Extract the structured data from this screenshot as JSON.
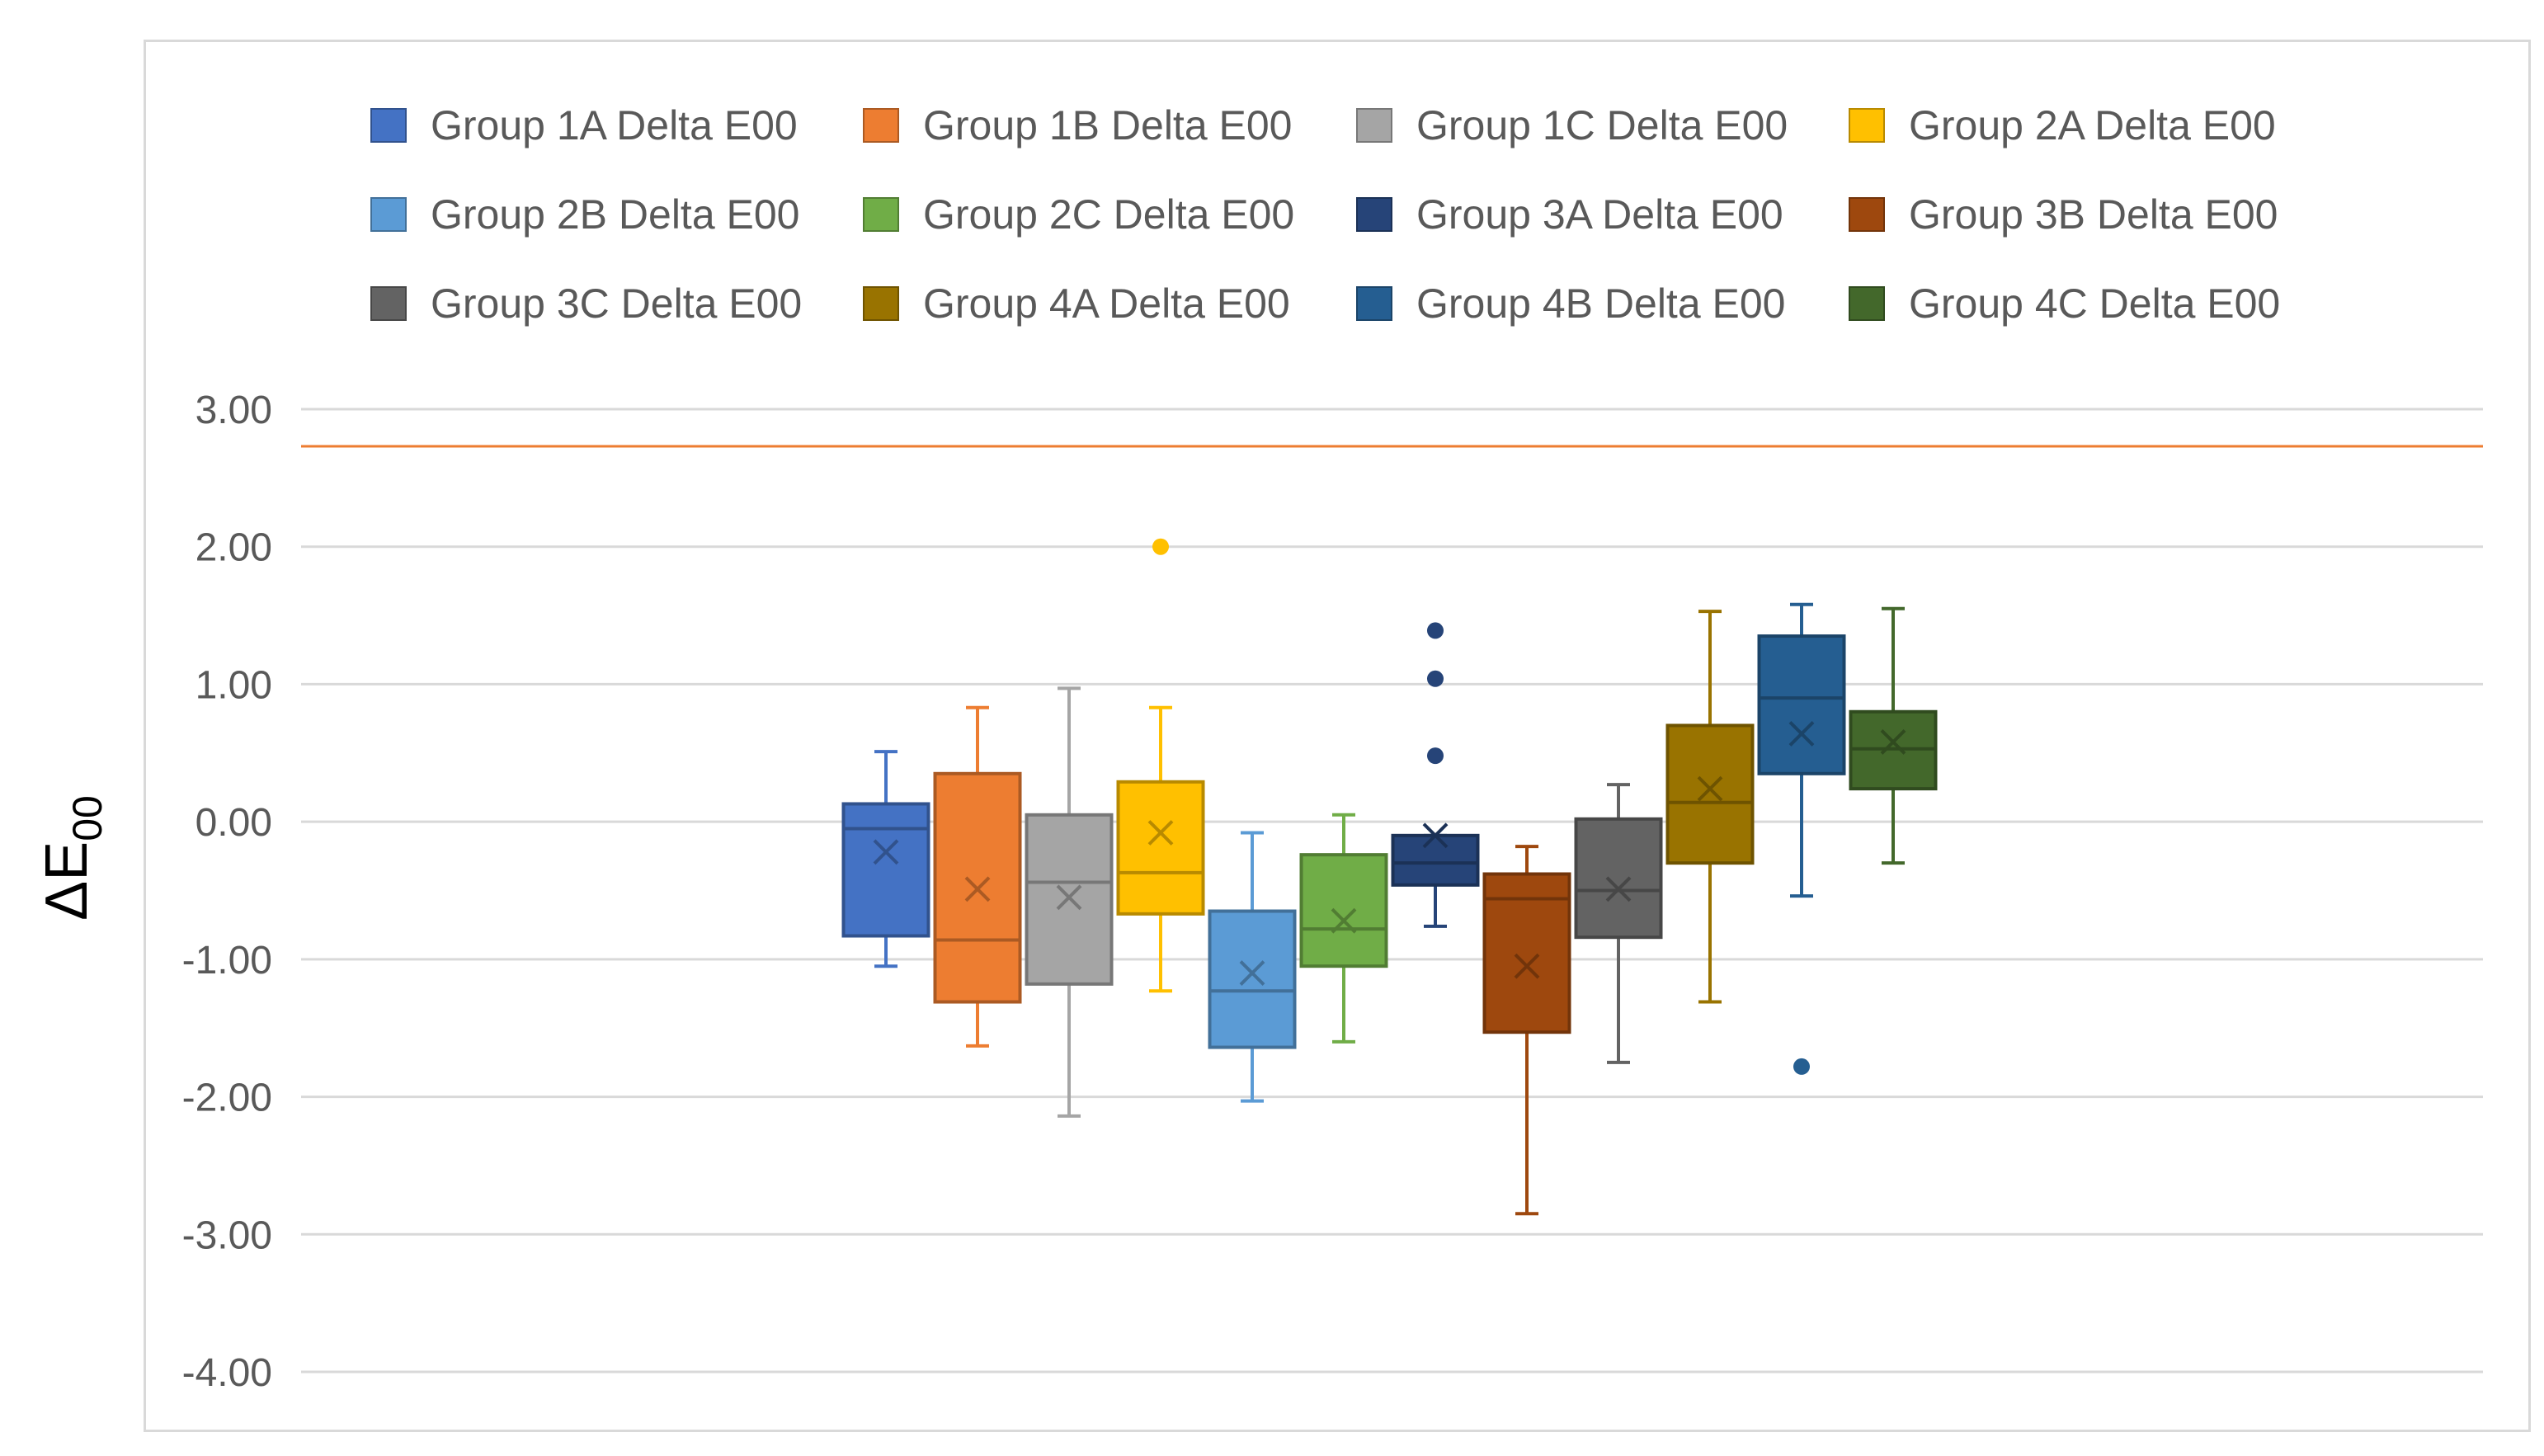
{
  "chart_data": {
    "type": "box",
    "title": "",
    "xlabel": "",
    "ylabel": "ΔE",
    "ylabel_subscript": "00",
    "ylim": [
      -4,
      3
    ],
    "yticks": [
      3,
      2,
      1,
      0,
      -1,
      -2,
      -3,
      -4
    ],
    "ytick_labels": [
      "3.00",
      "2.00",
      "1.00",
      "0.00",
      "-1.00",
      "-2.00",
      "-3.00",
      "-4.00"
    ],
    "grid": true,
    "legend_position": "top",
    "reference_line": {
      "value": 2.73,
      "color": "#ED7D31"
    },
    "series": [
      {
        "name": "Group 1A Delta E00",
        "color": "#4472C4",
        "whisker_low": -1.05,
        "q1": -0.83,
        "median": -0.05,
        "q3": 0.13,
        "whisker_high": 0.51,
        "mean": -0.22,
        "outliers": []
      },
      {
        "name": "Group 1B Delta E00",
        "color": "#ED7D31",
        "whisker_low": -1.63,
        "q1": -1.31,
        "median": -0.86,
        "q3": 0.35,
        "whisker_high": 0.83,
        "mean": -0.49,
        "outliers": []
      },
      {
        "name": "Group 1C Delta E00",
        "color": "#A5A5A5",
        "whisker_low": -2.14,
        "q1": -1.18,
        "median": -0.44,
        "q3": 0.05,
        "whisker_high": 0.97,
        "mean": -0.55,
        "outliers": []
      },
      {
        "name": "Group 2A Delta E00",
        "color": "#FFC000",
        "whisker_low": -1.23,
        "q1": -0.67,
        "median": -0.37,
        "q3": 0.29,
        "whisker_high": 0.83,
        "mean": -0.08,
        "outliers": [
          2.0
        ]
      },
      {
        "name": "Group 2B Delta E00",
        "color": "#5B9BD5",
        "whisker_low": -2.03,
        "q1": -1.64,
        "median": -1.23,
        "q3": -0.65,
        "whisker_high": -0.08,
        "mean": -1.1,
        "outliers": []
      },
      {
        "name": "Group 2C Delta E00",
        "color": "#70AD47",
        "whisker_low": -1.6,
        "q1": -1.05,
        "median": -0.78,
        "q3": -0.24,
        "whisker_high": 0.05,
        "mean": -0.72,
        "outliers": []
      },
      {
        "name": "Group 3A Delta E00",
        "color": "#264478",
        "whisker_low": -0.76,
        "q1": -0.46,
        "median": -0.3,
        "q3": -0.1,
        "whisker_high": -0.1,
        "mean": -0.1,
        "outliers": [
          1.39,
          1.04,
          0.48
        ]
      },
      {
        "name": "Group 3B Delta E00",
        "color": "#9E480E",
        "whisker_low": -2.85,
        "q1": -1.53,
        "median": -0.56,
        "q3": -0.38,
        "whisker_high": -0.18,
        "mean": -1.05,
        "outliers": []
      },
      {
        "name": "Group 3C Delta E00",
        "color": "#636363",
        "whisker_low": -1.75,
        "q1": -0.84,
        "median": -0.5,
        "q3": 0.02,
        "whisker_high": 0.27,
        "mean": -0.49,
        "outliers": []
      },
      {
        "name": "Group 4A Delta E00",
        "color": "#997300",
        "whisker_low": -1.31,
        "q1": -0.3,
        "median": 0.14,
        "q3": 0.7,
        "whisker_high": 1.53,
        "mean": 0.24,
        "outliers": []
      },
      {
        "name": "Group 4B Delta E00",
        "color": "#255E91",
        "whisker_low": -0.54,
        "q1": 0.35,
        "median": 0.9,
        "q3": 1.35,
        "whisker_high": 1.58,
        "mean": 0.64,
        "outliers": [
          -1.78
        ]
      },
      {
        "name": "Group 4C Delta E00",
        "color": "#43682B",
        "whisker_low": -0.3,
        "q1": 0.24,
        "median": 0.53,
        "q3": 0.8,
        "whisker_high": 1.55,
        "mean": 0.58,
        "outliers": []
      }
    ]
  }
}
